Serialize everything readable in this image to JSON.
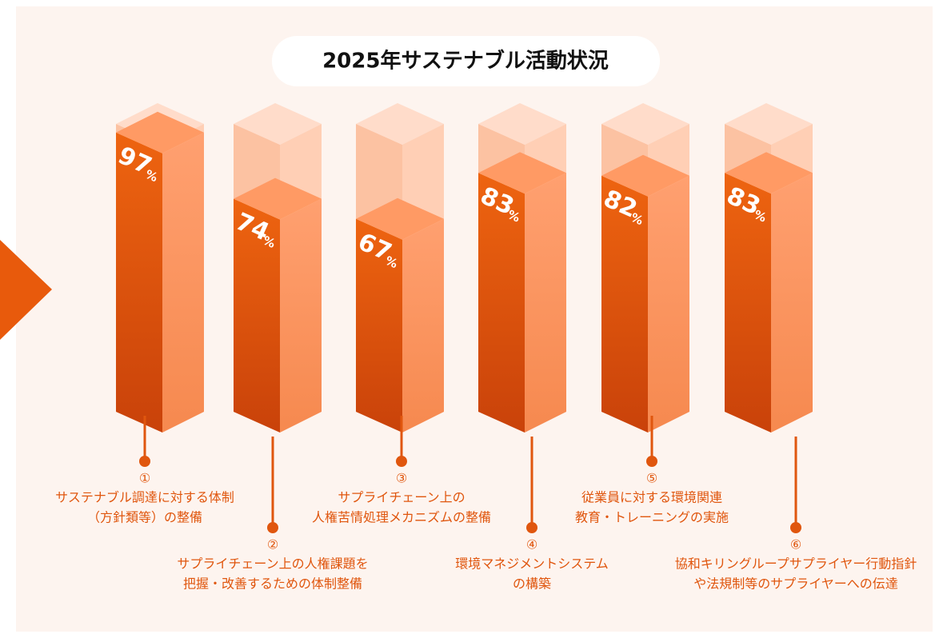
{
  "chart_data": {
    "type": "bar3d",
    "title": "2025年サステナブル活動状況",
    "value_unit": "%",
    "values": [
      97,
      74,
      67,
      83,
      82,
      83
    ],
    "labels": [
      {
        "number": "①",
        "lines": [
          "サステナブル調達に対する体制",
          "（方針類等）の整備"
        ]
      },
      {
        "number": "②",
        "lines": [
          "サプライチェーン上の人権課題を",
          "把握・改善するための体制整備"
        ]
      },
      {
        "number": "③",
        "lines": [
          "サプライチェーン上の",
          "人権苦情処理メカニズムの整備"
        ]
      },
      {
        "number": "④",
        "lines": [
          "環境マネジメントシステム",
          "の構築"
        ]
      },
      {
        "number": "⑤",
        "lines": [
          "従業員に対する環境関連",
          "教育・トレーニングの実施"
        ]
      },
      {
        "number": "⑥",
        "lines": [
          "協和キリングループサプライヤー行動指針",
          "や法規制等のサプライヤーへの伝達"
        ]
      }
    ],
    "color": "#e85a0c"
  }
}
